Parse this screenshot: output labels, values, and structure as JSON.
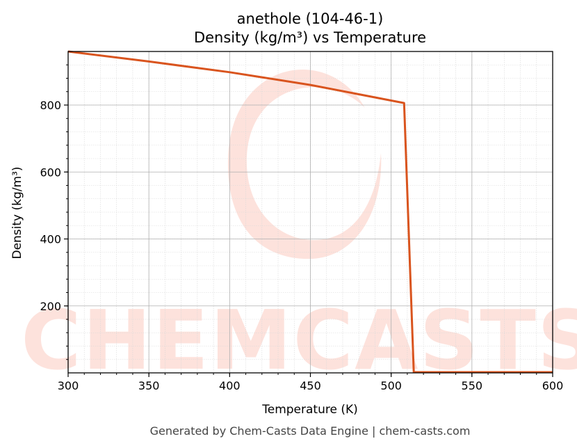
{
  "chart_data": {
    "type": "line",
    "title": "anethole (104-46-1)",
    "subtitle": "Density (kg/m³) vs Temperature",
    "xlabel": "Temperature (K)",
    "ylabel": "Density (kg/m³)",
    "xlim": [
      300,
      600
    ],
    "ylim": [
      0,
      960
    ],
    "xticks": [
      300,
      350,
      400,
      450,
      500,
      550,
      600
    ],
    "yticks": [
      200,
      400,
      600,
      800
    ],
    "grid": true,
    "series": [
      {
        "color": "#d9541e",
        "x": [
          300,
          350,
          400,
          450,
          508,
          514,
          550,
          600
        ],
        "y": [
          960,
          930,
          898,
          860,
          806,
          2,
          2,
          2
        ]
      }
    ]
  },
  "watermark": {
    "text": "CHEMCASTS",
    "color": "#fde2dc"
  },
  "footer": "Generated by Chem-Casts Data Engine | chem-casts.com"
}
